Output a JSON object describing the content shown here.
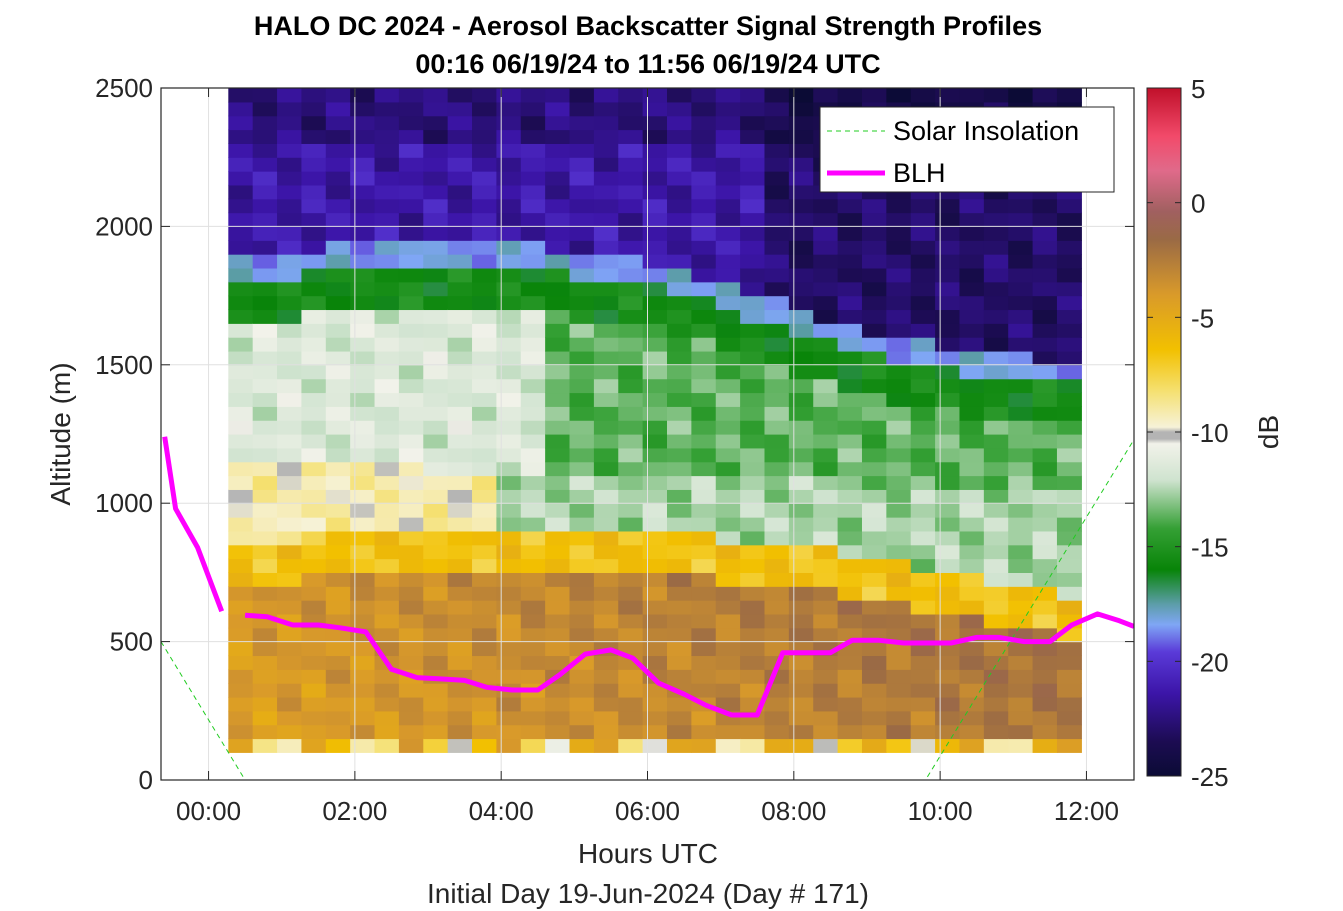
{
  "figure": {
    "title_line1": "HALO DC 2024 - Aerosol Backscatter Signal Strength Profiles",
    "title_line2": "00:16 06/19/24 to 11:56 06/19/24  UTC",
    "bottom_note": "Initial Day 19-Jun-2024 (Day # 171)"
  },
  "colorbar": {
    "label": "dB",
    "ticks": [
      "5",
      "0",
      "-5",
      "-10",
      "-15",
      "-20",
      "-25"
    ],
    "tick_values": [
      5,
      0,
      -5,
      -10,
      -15,
      -20,
      -25
    ],
    "range": [
      -25,
      5
    ]
  },
  "legend": {
    "solar_label": "Solar Insolation",
    "blh_label": "BLH",
    "position": "top-right"
  },
  "colors": {
    "blh": "#ff00ff",
    "solar": "#22cc22",
    "grid": "#e0e0e0"
  },
  "chart_data": {
    "type": "heatmap",
    "title": "HALO DC 2024 - Aerosol Backscatter Signal Strength Profiles",
    "subtitle": "00:16 06/19/24 to 11:56 06/19/24  UTC",
    "xlabel": "Hours UTC",
    "ylabel": "Altitude (m)",
    "xlim": [
      -0.65,
      12.65
    ],
    "ylim": [
      0,
      2500
    ],
    "x_ticks": [
      "00:00",
      "02:00",
      "04:00",
      "06:00",
      "08:00",
      "10:00",
      "12:00"
    ],
    "x_tick_values": [
      0,
      2,
      4,
      6,
      8,
      10,
      12
    ],
    "y_ticks": [
      "0",
      "500",
      "1000",
      "1500",
      "2000",
      "2500"
    ],
    "y_tick_values": [
      0,
      500,
      1000,
      1500,
      2000,
      2500
    ],
    "grid": true,
    "heatmap_profile": {
      "x_range": [
        0.27,
        11.93
      ],
      "y_range": [
        100,
        2500
      ],
      "colorbar_unit": "dB",
      "layers_dB": [
        {
          "from": 100,
          "to": 140,
          "value": -6
        },
        {
          "from": 140,
          "to": 500,
          "value": -3
        },
        {
          "from": 500,
          "to": 900,
          "value": -6
        },
        {
          "from": 900,
          "to": 1200,
          "value": -9
        },
        {
          "from": 1200,
          "to": 1450,
          "value": -11
        },
        {
          "from": 1450,
          "to": 1750,
          "value": -15
        },
        {
          "from": 1750,
          "to": 2000,
          "value": -19
        },
        {
          "from": 2000,
          "to": 2500,
          "value": -22
        }
      ]
    },
    "series": [
      {
        "name": "Solar Insolation",
        "style": "dashed",
        "x": [
          -0.65,
          0.5,
          9.8,
          12.65
        ],
        "y": [
          500,
          0,
          0,
          1230
        ]
      },
      {
        "name": "BLH",
        "style": "solid",
        "segments": [
          {
            "x": [
              -0.6,
              -0.45,
              -0.15,
              0.18
            ],
            "y": [
              1240,
              980,
              840,
              610
            ]
          },
          {
            "x": [
              0.5,
              0.8,
              1.15,
              1.5,
              1.8,
              2.15,
              2.5,
              2.85,
              3.2,
              3.5,
              3.8,
              4.15,
              4.5,
              4.8,
              5.15,
              5.5,
              5.8,
              6.15,
              6.5,
              6.8,
              7.15,
              7.5,
              7.85,
              8.15,
              8.5,
              8.8,
              9.15,
              9.5,
              9.8,
              10.15,
              10.5,
              10.8,
              11.15,
              11.5,
              11.8,
              12.15,
              12.45,
              12.65
            ],
            "y": [
              595,
              590,
              560,
              560,
              550,
              535,
              400,
              370,
              365,
              360,
              335,
              325,
              325,
              380,
              455,
              470,
              440,
              350,
              310,
              270,
              235,
              235,
              460,
              460,
              460,
              505,
              505,
              495,
              495,
              495,
              515,
              515,
              500,
              500,
              560,
              600,
              575,
              555
            ]
          }
        ]
      }
    ]
  }
}
